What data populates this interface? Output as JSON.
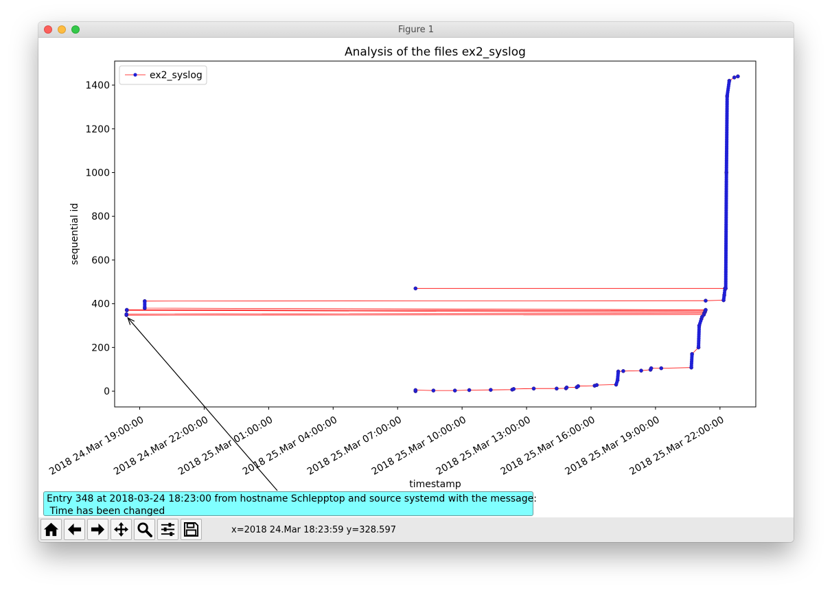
{
  "window": {
    "title": "Figure 1"
  },
  "chart_data": {
    "type": "line",
    "title": "Analysis of the files ex2_syslog",
    "xlabel": "timestamp",
    "ylabel": "sequential id",
    "legend": {
      "location": "top-left",
      "entries": [
        "ex2_syslog"
      ]
    },
    "x_ticks": [
      "2018 24.Mar 19:00:00",
      "2018 24.Mar 22:00:00",
      "2018 25.Mar 01:00:00",
      "2018 25.Mar 04:00:00",
      "2018 25.Mar 07:00:00",
      "2018 25.Mar 10:00:00",
      "2018 25.Mar 13:00:00",
      "2018 25.Mar 16:00:00",
      "2018 25.Mar 19:00:00",
      "2018 25.Mar 22:00:00"
    ],
    "x_range": [
      "2018-03-24 17:50",
      "2018-03-25 23:40"
    ],
    "y_ticks": [
      0,
      200,
      400,
      600,
      800,
      1000,
      1200,
      1400
    ],
    "ylim": [
      -72,
      1510
    ],
    "grid": false,
    "series": [
      {
        "name": "ex2_syslog",
        "line_color": "#ff0000",
        "marker_color": "#1f1fd6",
        "points": [
          {
            "x": "2018-03-25 07:50",
            "y": 0
          },
          {
            "x": "2018-03-25 07:50",
            "y": 5
          },
          {
            "x": "2018-03-25 08:40",
            "y": 3
          },
          {
            "x": "2018-03-25 09:40",
            "y": 3
          },
          {
            "x": "2018-03-25 10:20",
            "y": 5
          },
          {
            "x": "2018-03-25 11:20",
            "y": 6
          },
          {
            "x": "2018-03-25 12:20",
            "y": 7
          },
          {
            "x": "2018-03-25 12:24",
            "y": 10
          },
          {
            "x": "2018-03-25 13:20",
            "y": 12
          },
          {
            "x": "2018-03-25 14:24",
            "y": 12
          },
          {
            "x": "2018-03-25 14:50",
            "y": 13
          },
          {
            "x": "2018-03-25 14:52",
            "y": 17
          },
          {
            "x": "2018-03-25 15:20",
            "y": 18
          },
          {
            "x": "2018-03-25 15:24",
            "y": 23
          },
          {
            "x": "2018-03-25 16:10",
            "y": 25
          },
          {
            "x": "2018-03-25 16:16",
            "y": 28
          },
          {
            "x": "2018-03-25 17:10",
            "y": 30
          },
          {
            "x": "2018-03-25 17:14",
            "y": 50
          },
          {
            "x": "2018-03-25 17:16",
            "y": 90
          },
          {
            "x": "2018-03-25 17:30",
            "y": 92
          },
          {
            "x": "2018-03-25 18:20",
            "y": 94
          },
          {
            "x": "2018-03-25 18:46",
            "y": 98
          },
          {
            "x": "2018-03-25 18:48",
            "y": 105
          },
          {
            "x": "2018-03-25 19:16",
            "y": 105
          },
          {
            "x": "2018-03-25 20:40",
            "y": 108
          },
          {
            "x": "2018-03-25 20:42",
            "y": 170
          },
          {
            "x": "2018-03-25 21:00",
            "y": 200
          },
          {
            "x": "2018-03-25 21:02",
            "y": 300
          },
          {
            "x": "2018-03-25 21:08",
            "y": 330
          },
          {
            "x": "2018-03-25 21:10",
            "y": 340
          },
          {
            "x": "2018-03-25 21:15",
            "y": 350
          },
          {
            "x": "2018-03-24 18:23",
            "y": 348
          },
          {
            "x": "2018-03-24 18:23",
            "y": 352
          },
          {
            "x": "2018-03-25 21:16",
            "y": 357
          },
          {
            "x": "2018-03-25 21:18",
            "y": 362
          },
          {
            "x": "2018-03-24 18:24",
            "y": 370
          },
          {
            "x": "2018-03-24 18:24",
            "y": 372
          },
          {
            "x": "2018-03-25 21:19",
            "y": 368
          },
          {
            "x": "2018-03-25 21:20",
            "y": 372
          },
          {
            "x": "2018-03-24 19:14",
            "y": 380
          },
          {
            "x": "2018-03-24 19:14",
            "y": 412
          },
          {
            "x": "2018-03-25 21:20",
            "y": 414
          },
          {
            "x": "2018-03-25 22:10",
            "y": 416
          },
          {
            "x": "2018-03-25 22:12",
            "y": 440
          },
          {
            "x": "2018-03-25 22:14",
            "y": 470
          },
          {
            "x": "2018-03-25 07:50",
            "y": 470
          },
          {
            "x": "2018-03-25 22:16",
            "y": 470
          },
          {
            "x": "2018-03-25 22:18",
            "y": 1000
          },
          {
            "x": "2018-03-25 22:20",
            "y": 1350
          },
          {
            "x": "2018-03-25 22:26",
            "y": 1420
          },
          {
            "x": "2018-03-25 22:40",
            "y": 1435
          },
          {
            "x": "2018-03-25 22:50",
            "y": 1440
          }
        ]
      }
    ],
    "annotation": {
      "point": {
        "x": "2018-03-24 18:23",
        "y": 348
      },
      "text_line1": "Entry 348 at 2018-03-24 18:23:00 from hostname Schlepptop and source systemd with the message:",
      "text_line2": " Time has been changed",
      "background": "#80ffff"
    }
  },
  "toolbar": {
    "buttons": [
      {
        "name": "home-button",
        "icon": "home-icon"
      },
      {
        "name": "back-button",
        "icon": "arrow-left-icon"
      },
      {
        "name": "forward-button",
        "icon": "arrow-right-icon"
      },
      {
        "name": "pan-button",
        "icon": "move-icon"
      },
      {
        "name": "zoom-button",
        "icon": "magnifier-icon"
      },
      {
        "name": "configure-subplots-button",
        "icon": "sliders-icon"
      },
      {
        "name": "save-button",
        "icon": "floppy-disk-icon"
      }
    ],
    "coords": "x=2018 24.Mar 18:23:59 y=328.597"
  }
}
